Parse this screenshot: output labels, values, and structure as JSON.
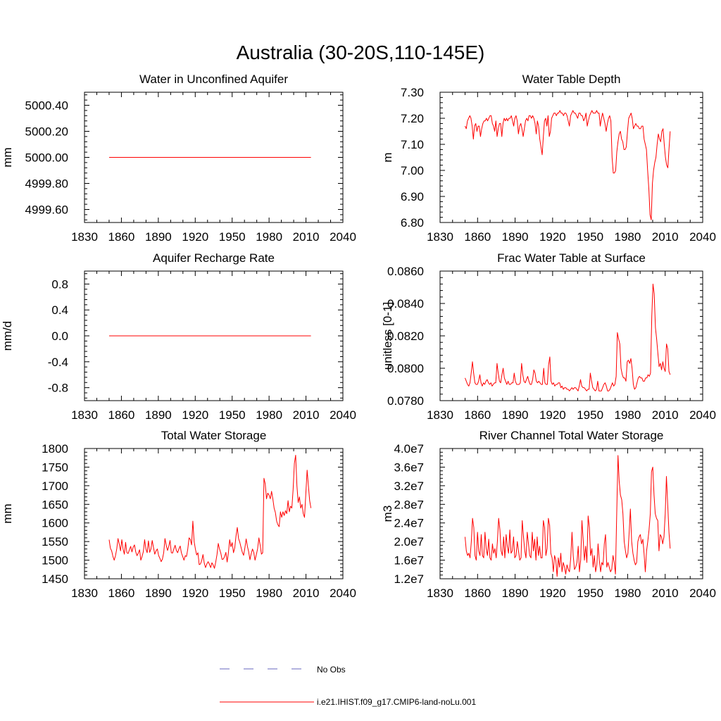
{
  "title": "Australia (30-20S,110-145E)",
  "legend": {
    "items": [
      {
        "label": "No Obs",
        "color": "#3333aa",
        "dash": true
      },
      {
        "label": "i.e21.IHIST.f09_g17.CMIP6-land-noLu.001",
        "color": "#ff0000",
        "dash": false
      }
    ]
  },
  "chart_data": [
    {
      "type": "line",
      "title": "Water in Unconfined Aquifer",
      "ylabel": "mm",
      "xlim": [
        1830,
        2040
      ],
      "xticks": [
        "1830",
        "1860",
        "1890",
        "1920",
        "1950",
        "1980",
        "2010",
        "2040"
      ],
      "ylim": [
        4999.5,
        5000.5
      ],
      "yticks": [
        "4999.60",
        "4999.80",
        "5000.00",
        "5000.20",
        "5000.40"
      ],
      "series": [
        {
          "x_start": 1850,
          "x_end": 2014,
          "values": [
            5000.0,
            5000.0
          ]
        }
      ]
    },
    {
      "type": "line",
      "title": "Water Table Depth",
      "ylabel": "m",
      "xlim": [
        1830,
        2040
      ],
      "xticks": [
        "1830",
        "1860",
        "1890",
        "1920",
        "1950",
        "1980",
        "2010",
        "2040"
      ],
      "ylim": [
        6.8,
        7.3
      ],
      "yticks": [
        "6.80",
        "6.90",
        "7.00",
        "7.10",
        "7.20",
        "7.30"
      ],
      "series": [
        {
          "x_start": 1850,
          "x_end": 2014,
          "values": [
            7.17,
            7.16,
            7.19,
            7.2,
            7.21,
            7.2,
            7.17,
            7.12,
            7.17,
            7.18,
            7.15,
            7.17,
            7.17,
            7.13,
            7.16,
            7.18,
            7.19,
            7.19,
            7.2,
            7.19,
            7.2,
            7.21,
            7.21,
            7.18,
            7.17,
            7.15,
            7.19,
            7.13,
            7.16,
            7.18,
            7.18,
            7.13,
            7.18,
            7.2,
            7.19,
            7.2,
            7.19,
            7.2,
            7.2,
            7.21,
            7.19,
            7.17,
            7.2,
            7.21,
            7.19,
            7.14,
            7.17,
            7.18,
            7.16,
            7.13,
            7.16,
            7.19,
            7.2,
            7.19,
            7.21,
            7.21,
            7.2,
            7.21,
            7.2,
            7.18,
            7.14,
            7.19,
            7.17,
            7.12,
            7.09,
            7.06,
            7.13,
            7.19,
            7.2,
            7.17,
            7.21,
            7.13,
            7.15,
            7.2,
            7.21,
            7.22,
            7.22,
            7.21,
            7.22,
            7.22,
            7.23,
            7.22,
            7.22,
            7.21,
            7.22,
            7.22,
            7.21,
            7.19,
            7.17,
            7.21,
            7.22,
            7.23,
            7.22,
            7.22,
            7.21,
            7.2,
            7.22,
            7.22,
            7.21,
            7.21,
            7.19,
            7.2,
            7.22,
            7.17,
            7.19,
            7.21,
            7.22,
            7.23,
            7.22,
            7.22,
            7.22,
            7.23,
            7.22,
            7.22,
            7.17,
            7.2,
            7.22,
            7.2,
            7.18,
            7.15,
            7.18,
            7.2,
            7.21,
            7.19,
            7.05,
            6.99,
            6.99,
            7.0,
            7.07,
            7.11,
            7.14,
            7.15,
            7.12,
            7.11,
            7.08,
            7.08,
            7.09,
            7.15,
            7.2,
            7.21,
            7.22,
            7.2,
            7.16,
            7.17,
            7.18,
            7.17,
            7.17,
            7.16,
            7.16,
            7.17,
            7.17,
            7.12,
            7.1,
            7.08,
            7.0,
            6.93,
            6.83,
            6.81,
            6.95,
            7.0,
            7.03,
            7.05,
            7.1,
            7.14,
            7.12,
            7.11,
            7.15,
            7.16,
            7.1,
            7.05,
            7.02,
            7.01,
            7.08,
            7.15
          ]
        }
      ]
    },
    {
      "type": "line",
      "title": "Aquifer Recharge Rate",
      "ylabel": "mm/d",
      "xlim": [
        1830,
        2040
      ],
      "xticks": [
        "1830",
        "1860",
        "1890",
        "1920",
        "1950",
        "1980",
        "2010",
        "2040"
      ],
      "ylim": [
        -1.0,
        1.0
      ],
      "yticks": [
        "-0.8",
        "-0.4",
        "0.0",
        "0.4",
        "0.8"
      ],
      "series": [
        {
          "x_start": 1850,
          "x_end": 2014,
          "values": [
            0.0,
            0.0
          ]
        }
      ]
    },
    {
      "type": "line",
      "title": "Frac Water Table at Surface",
      "ylabel": "unitless [0-1]",
      "xlim": [
        1830,
        2040
      ],
      "xticks": [
        "1830",
        "1860",
        "1890",
        "1920",
        "1950",
        "1980",
        "2010",
        "2040"
      ],
      "ylim": [
        0.078,
        0.086
      ],
      "yticks": [
        "0.0780",
        "0.0800",
        "0.0820",
        "0.0840",
        "0.0860"
      ],
      "series": [
        {
          "x_start": 1850,
          "x_end": 2014,
          "values": [
            0.0794,
            0.0792,
            0.079,
            0.0789,
            0.0791,
            0.0797,
            0.0804,
            0.0797,
            0.0791,
            0.079,
            0.079,
            0.0792,
            0.0796,
            0.0791,
            0.0789,
            0.0791,
            0.079,
            0.0792,
            0.0793,
            0.0791,
            0.079,
            0.0791,
            0.0789,
            0.079,
            0.0791,
            0.0791,
            0.0803,
            0.0797,
            0.0792,
            0.0791,
            0.0796,
            0.08,
            0.0794,
            0.0792,
            0.079,
            0.0792,
            0.079,
            0.079,
            0.0791,
            0.0791,
            0.0797,
            0.0792,
            0.079,
            0.079,
            0.079,
            0.0791,
            0.0803,
            0.0796,
            0.0792,
            0.0791,
            0.0793,
            0.0795,
            0.0792,
            0.079,
            0.079,
            0.0793,
            0.0799,
            0.0797,
            0.0792,
            0.0791,
            0.0792,
            0.0791,
            0.079,
            0.079,
            0.08,
            0.0791,
            0.079,
            0.079,
            0.0802,
            0.0807,
            0.0792,
            0.079,
            0.0791,
            0.0789,
            0.079,
            0.079,
            0.0791,
            0.0791,
            0.0788,
            0.0789,
            0.0787,
            0.0788,
            0.0788,
            0.0787,
            0.0787,
            0.0786,
            0.0787,
            0.0788,
            0.0787,
            0.0788,
            0.0788,
            0.0787,
            0.0786,
            0.0789,
            0.0793,
            0.0789,
            0.0788,
            0.0788,
            0.0787,
            0.0786,
            0.0787,
            0.0787,
            0.0797,
            0.0792,
            0.0788,
            0.0787,
            0.0786,
            0.0787,
            0.0792,
            0.0786,
            0.0786,
            0.0786,
            0.0788,
            0.079,
            0.0791,
            0.0789,
            0.0786,
            0.0786,
            0.0787,
            0.0789,
            0.0791,
            0.0789,
            0.079,
            0.0795,
            0.0822,
            0.0818,
            0.0815,
            0.08,
            0.0796,
            0.0794,
            0.0794,
            0.0792,
            0.0804,
            0.0805,
            0.0803,
            0.0806,
            0.08,
            0.079,
            0.0787,
            0.0788,
            0.0791,
            0.0794,
            0.0795,
            0.0794,
            0.0794,
            0.0792,
            0.0792,
            0.0794,
            0.0794,
            0.0796,
            0.0795,
            0.0797,
            0.0832,
            0.0852,
            0.0846,
            0.0825,
            0.0818,
            0.0809,
            0.0801,
            0.0803,
            0.0799,
            0.0804,
            0.08,
            0.0798,
            0.0815,
            0.0812,
            0.0798,
            0.0796
          ]
        }
      ]
    },
    {
      "type": "line",
      "title": "Total Water Storage",
      "ylabel": "mm",
      "xlim": [
        1830,
        2040
      ],
      "xticks": [
        "1830",
        "1860",
        "1890",
        "1920",
        "1950",
        "1980",
        "2010",
        "2040"
      ],
      "ylim": [
        1450,
        1800
      ],
      "yticks": [
        "1450",
        "1500",
        "1550",
        "1600",
        "1650",
        "1700",
        "1750",
        "1800"
      ],
      "series": [
        {
          "x_start": 1850,
          "x_end": 2014,
          "values": [
            1555,
            1532,
            1525,
            1510,
            1500,
            1512,
            1530,
            1558,
            1543,
            1525,
            1555,
            1530,
            1516,
            1548,
            1520,
            1518,
            1528,
            1537,
            1522,
            1535,
            1541,
            1522,
            1512,
            1519,
            1528,
            1500,
            1510,
            1523,
            1555,
            1530,
            1520,
            1552,
            1521,
            1530,
            1553,
            1534,
            1516,
            1525,
            1530,
            1512,
            1505,
            1496,
            1503,
            1520,
            1558,
            1540,
            1526,
            1537,
            1553,
            1520,
            1519,
            1530,
            1540,
            1526,
            1520,
            1530,
            1538,
            1519,
            1510,
            1500,
            1512,
            1510,
            1530,
            1560,
            1556,
            1541,
            1605,
            1550,
            1530,
            1514,
            1520,
            1488,
            1490,
            1499,
            1515,
            1492,
            1480,
            1490,
            1496,
            1489,
            1480,
            1493,
            1487,
            1478,
            1495,
            1515,
            1545,
            1530,
            1519,
            1502,
            1503,
            1510,
            1521,
            1495,
            1520,
            1555,
            1536,
            1547,
            1520,
            1533,
            1565,
            1588,
            1558,
            1548,
            1534,
            1521,
            1513,
            1533,
            1557,
            1537,
            1522,
            1501,
            1518,
            1530,
            1521,
            1500,
            1515,
            1531,
            1560,
            1540,
            1516,
            1520,
            1720,
            1705,
            1665,
            1680,
            1675,
            1665,
            1685,
            1665,
            1640,
            1628,
            1605,
            1595,
            1590,
            1630,
            1615,
            1630,
            1620,
            1633,
            1625,
            1660,
            1630,
            1645,
            1640,
            1690,
            1760,
            1782,
            1700,
            1655,
            1670,
            1640,
            1650,
            1625,
            1615,
            1680,
            1742,
            1700,
            1660,
            1640
          ]
        }
      ]
    },
    {
      "type": "line",
      "title": "River Channel Total Water Storage",
      "ylabel": "m3",
      "xlim": [
        1830,
        2040
      ],
      "xticks": [
        "1830",
        "1860",
        "1890",
        "1920",
        "1950",
        "1980",
        "2010",
        "2040"
      ],
      "ylim": [
        12000000,
        40000000
      ],
      "yticks": [
        "1.2e7",
        "1.6e7",
        "2.0e7",
        "2.4e7",
        "2.8e7",
        "3.2e7",
        "3.6e7",
        "4.0e7"
      ],
      "series": [
        {
          "x_start": 1850,
          "x_end": 2014,
          "values": [
            21000000,
            18000000,
            17000000,
            17500000,
            16500000,
            20000000,
            25000000,
            23000000,
            17000000,
            16000000,
            22000000,
            18000000,
            17000000,
            21500000,
            17000000,
            16500000,
            22000000,
            18500000,
            17000000,
            20500000,
            16500000,
            16000000,
            19500000,
            17500000,
            18500000,
            16500000,
            20000000,
            25000000,
            22500000,
            18000000,
            17000000,
            21000000,
            16500000,
            21500000,
            19000000,
            17500000,
            22500000,
            17500000,
            18000000,
            21000000,
            16500000,
            17000000,
            20000000,
            18000000,
            16000000,
            16500000,
            24500000,
            21000000,
            18000000,
            16500000,
            22000000,
            19500000,
            17000000,
            16500000,
            22000000,
            18000000,
            20500000,
            16000000,
            21000000,
            17000000,
            19000000,
            16500000,
            16500000,
            24500000,
            23000000,
            17000000,
            18500000,
            25000000,
            23500000,
            17500000,
            16500000,
            13500000,
            17000000,
            16000000,
            12500000,
            16500000,
            14500000,
            17500000,
            13500000,
            15500000,
            14500000,
            13000000,
            15000000,
            14000000,
            13500000,
            16500000,
            22000000,
            17000000,
            14000000,
            14500000,
            15500000,
            19000000,
            13500000,
            16000000,
            24500000,
            20500000,
            16000000,
            19000000,
            15500000,
            25500000,
            23000000,
            17000000,
            18500000,
            14500000,
            17000000,
            13500000,
            15000000,
            19500000,
            16000000,
            13500000,
            15500000,
            15000000,
            19500000,
            21500000,
            14500000,
            15500000,
            14500000,
            13500000,
            14000000,
            17000000,
            15500000,
            13000000,
            26000000,
            38500000,
            33000000,
            30000000,
            29000000,
            26000000,
            20000000,
            18000000,
            16500000,
            17500000,
            22000000,
            27000000,
            20000000,
            17500000,
            16000000,
            15000000,
            15500000,
            20000000,
            21000000,
            21500000,
            19500000,
            20500000,
            17500000,
            13500000,
            18000000,
            20000000,
            22500000,
            26000000,
            35000000,
            36000000,
            30000000,
            26000000,
            25000000,
            24500000,
            18000000,
            21500000,
            21000000,
            19500000,
            21000000,
            26000000,
            34000000,
            28000000,
            22000000,
            18500000
          ]
        }
      ]
    }
  ]
}
